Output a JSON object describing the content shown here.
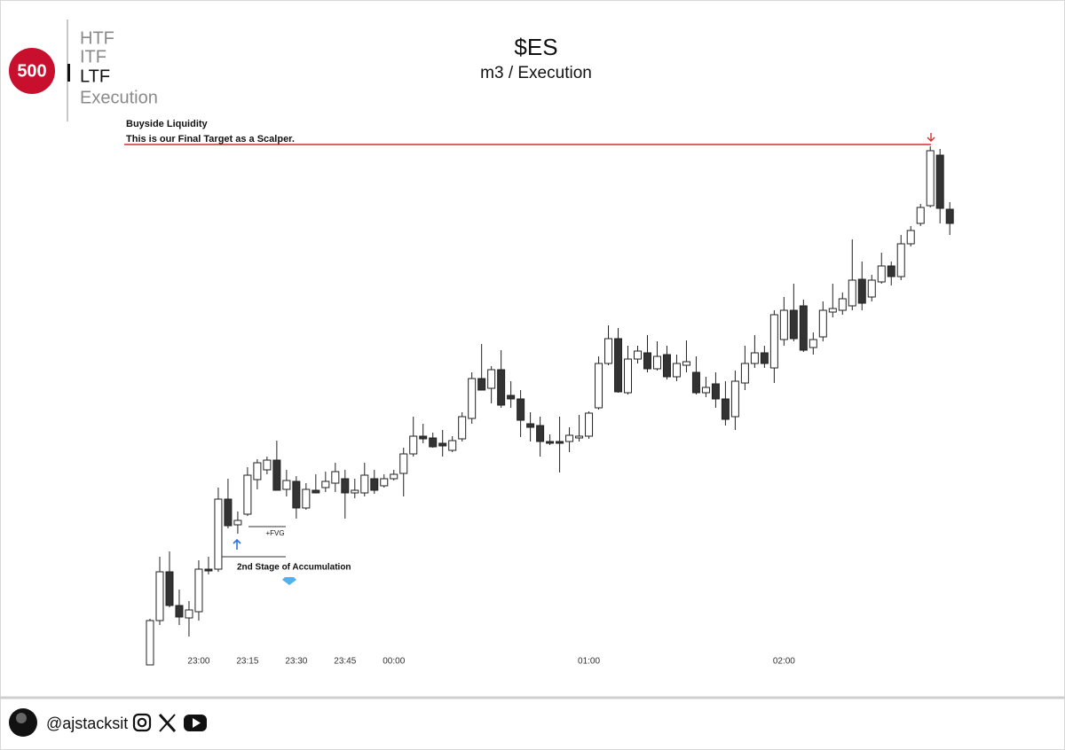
{
  "logo": "500",
  "nav": [
    "HTF",
    "ITF",
    "LTF",
    "Execution"
  ],
  "nav_active": 2,
  "chart_data": {
    "type": "candlestick",
    "title": "$ES",
    "subtitle": "m3 / Execution",
    "categories": [
      null,
      null,
      null,
      null,
      null,
      "23:00",
      null,
      null,
      null,
      null,
      "23:15",
      null,
      null,
      null,
      null,
      "23:30",
      null,
      null,
      null,
      null,
      "23:45",
      null,
      null,
      null,
      null,
      "00:00",
      null,
      null,
      null,
      null,
      null,
      null,
      null,
      null,
      null,
      null,
      null,
      null,
      null,
      null,
      null,
      null,
      null,
      null,
      null,
      "01:00",
      null,
      null,
      null,
      null,
      null,
      null,
      null,
      null,
      null,
      null,
      null,
      null,
      null,
      null,
      null,
      null,
      null,
      null,
      null,
      "02:00",
      null,
      null,
      null,
      null,
      null,
      null,
      null,
      null,
      null,
      null,
      null,
      null,
      null,
      null,
      null,
      null,
      null
    ],
    "open": [
      0,
      50,
      105,
      67,
      53,
      60,
      108,
      108,
      187,
      158,
      170,
      209,
      220,
      231,
      198,
      207,
      177,
      197,
      200,
      205,
      210,
      194,
      194,
      210,
      202,
      210,
      216,
      238,
      258,
      256,
      250,
      242,
      255,
      278,
      323,
      312,
      333,
      304,
      300,
      272,
      270,
      252,
      252,
      252,
      256,
      258,
      290,
      340,
      368,
      307,
      345,
      352,
      334,
      350,
      325,
      338,
      330,
      307,
      317,
      300,
      280,
      318,
      340,
      352,
      335,
      367,
      400,
      405,
      358,
      370,
      398,
      400,
      405,
      435,
      415,
      432,
      450,
      438,
      475,
      498,
      518,
      575,
      514
    ],
    "high": [
      52,
      122,
      128,
      85,
      72,
      118,
      122,
      200,
      210,
      173,
      223,
      232,
      235,
      253,
      220,
      213,
      205,
      215,
      218,
      228,
      220,
      210,
      228,
      220,
      215,
      220,
      245,
      280,
      272,
      262,
      265,
      258,
      285,
      330,
      362,
      337,
      355,
      320,
      310,
      285,
      280,
      260,
      280,
      268,
      282,
      286,
      348,
      383,
      380,
      360,
      360,
      372,
      365,
      360,
      350,
      366,
      348,
      325,
      330,
      320,
      332,
      360,
      372,
      360,
      400,
      415,
      430,
      412,
      375,
      410,
      430,
      420,
      480,
      455,
      440,
      465,
      455,
      485,
      495,
      520,
      585,
      582,
      522
    ],
    "low": [
      0,
      45,
      65,
      45,
      32,
      50,
      102,
      105,
      154,
      148,
      168,
      198,
      215,
      197,
      190,
      165,
      175,
      194,
      195,
      195,
      165,
      188,
      190,
      193,
      200,
      208,
      190,
      235,
      250,
      245,
      235,
      240,
      252,
      272,
      310,
      295,
      290,
      290,
      257,
      252,
      235,
      248,
      217,
      240,
      252,
      255,
      288,
      338,
      307,
      305,
      340,
      330,
      332,
      322,
      320,
      330,
      305,
      302,
      290,
      270,
      265,
      310,
      335,
      335,
      318,
      360,
      365,
      353,
      350,
      365,
      392,
      395,
      400,
      400,
      410,
      430,
      428,
      434,
      472,
      495,
      516,
      498,
      485
    ],
    "close": [
      50,
      105,
      67,
      54,
      62,
      108,
      106,
      187,
      157,
      163,
      214,
      228,
      231,
      197,
      208,
      177,
      198,
      194,
      207,
      218,
      194,
      197,
      214,
      197,
      210,
      215,
      238,
      258,
      255,
      246,
      247,
      253,
      280,
      323,
      310,
      333,
      293,
      300,
      276,
      268,
      252,
      250,
      250,
      259,
      258,
      284,
      340,
      368,
      308,
      345,
      354,
      334,
      348,
      325,
      340,
      342,
      307,
      313,
      300,
      277,
      320,
      340,
      352,
      340,
      395,
      400,
      368,
      355,
      367,
      400,
      402,
      413,
      434,
      408,
      434,
      450,
      438,
      475,
      490,
      516,
      580,
      515,
      498
    ],
    "up_color": "#ffffff",
    "down_color": "#333333",
    "ylim": [
      0,
      610
    ],
    "levels": [
      {
        "value": 587,
        "color": "#d32f2f",
        "texts": [
          "Buyside Liquidity",
          "This is our Final Target as a Scalper."
        ]
      },
      {
        "value": 156,
        "color": "#333333",
        "texts": [
          "+FVG"
        ]
      },
      {
        "value": 122,
        "color": "#333333",
        "texts": [
          "2nd Stage of Accumulation"
        ]
      }
    ]
  },
  "footer": {
    "handle": "@ajstacksit"
  }
}
